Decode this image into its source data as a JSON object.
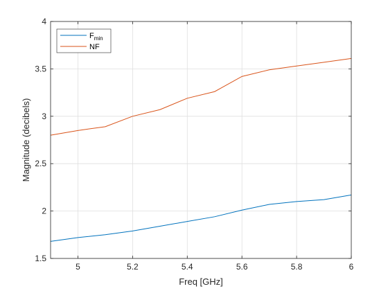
{
  "chart_data": {
    "type": "line",
    "title": "",
    "xlabel": "Freq [GHz]",
    "ylabel": "Magnitude (decibels)",
    "xlim": [
      4.9,
      6.0
    ],
    "ylim": [
      1.5,
      4.0
    ],
    "xticks": [
      5,
      5.2,
      5.4,
      5.6,
      5.8,
      6
    ],
    "xtick_labels": [
      "5",
      "5.2",
      "5.4",
      "5.6",
      "5.8",
      "6"
    ],
    "yticks": [
      1.5,
      2,
      2.5,
      3,
      3.5,
      4
    ],
    "ytick_labels": [
      "1.5",
      "2",
      "2.5",
      "3",
      "3.5",
      "4"
    ],
    "grid": true,
    "legend_position": "top-left",
    "x": [
      4.9,
      5.0,
      5.1,
      5.2,
      5.3,
      5.4,
      5.5,
      5.6,
      5.7,
      5.8,
      5.9,
      6.0
    ],
    "series": [
      {
        "name": "F",
        "name_subscript": "min",
        "color": "#0072BD",
        "values": [
          1.68,
          1.72,
          1.75,
          1.79,
          1.84,
          1.89,
          1.94,
          2.01,
          2.07,
          2.1,
          2.12,
          2.17
        ]
      },
      {
        "name": "NF",
        "color": "#D95319",
        "values": [
          2.8,
          2.85,
          2.89,
          3.0,
          3.07,
          3.19,
          3.26,
          3.42,
          3.49,
          3.53,
          3.57,
          3.61
        ]
      }
    ]
  }
}
